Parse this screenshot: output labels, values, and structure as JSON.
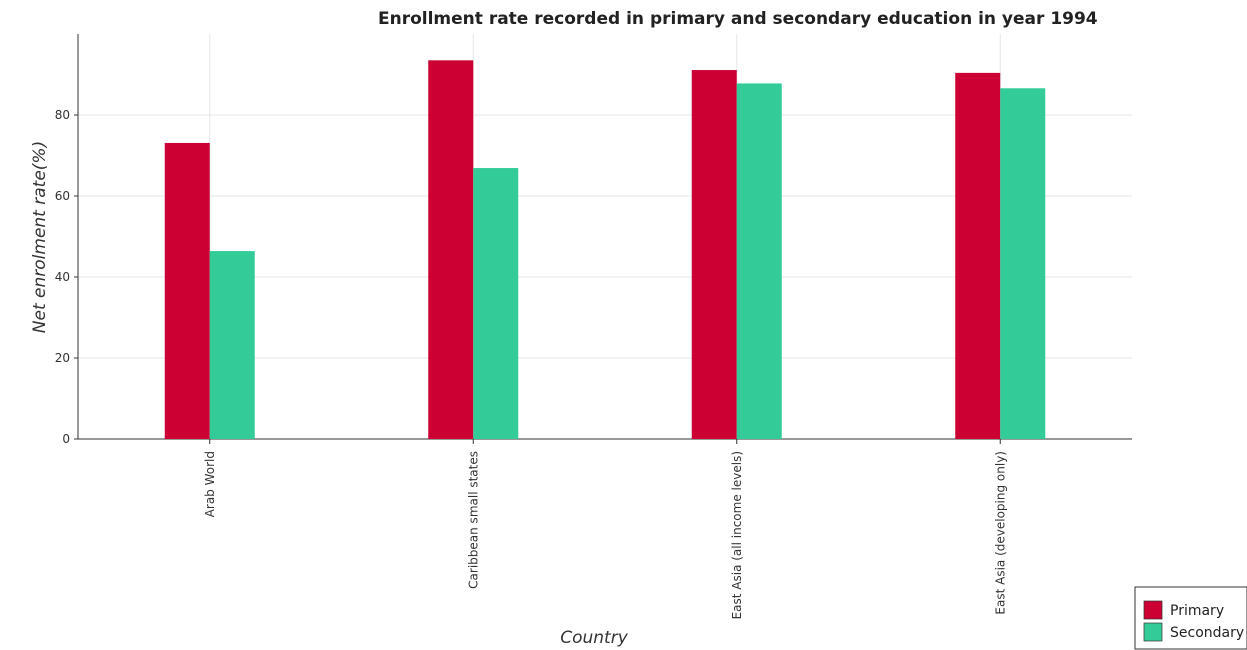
{
  "chart_data": {
    "type": "bar",
    "title": "Enrollment rate recorded in primary and secondary education in year 1994",
    "xlabel": "Country",
    "ylabel": "Net enrolment rate(%)",
    "categories": [
      "Arab World",
      "Caribbean small states",
      "East Asia (all income levels)",
      "East Asia (developing only)"
    ],
    "series": [
      {
        "name": "Primary",
        "color": "#cc0033",
        "values": [
          73.1,
          93.5,
          91.1,
          90.4
        ]
      },
      {
        "name": "Secondary",
        "color": "#33cc99",
        "values": [
          46.4,
          66.9,
          87.8,
          86.6
        ]
      }
    ],
    "ylim": [
      0,
      100
    ],
    "yticks": [
      0,
      20,
      40,
      60,
      80
    ],
    "grid": true,
    "legend_position": "bottom-right"
  }
}
